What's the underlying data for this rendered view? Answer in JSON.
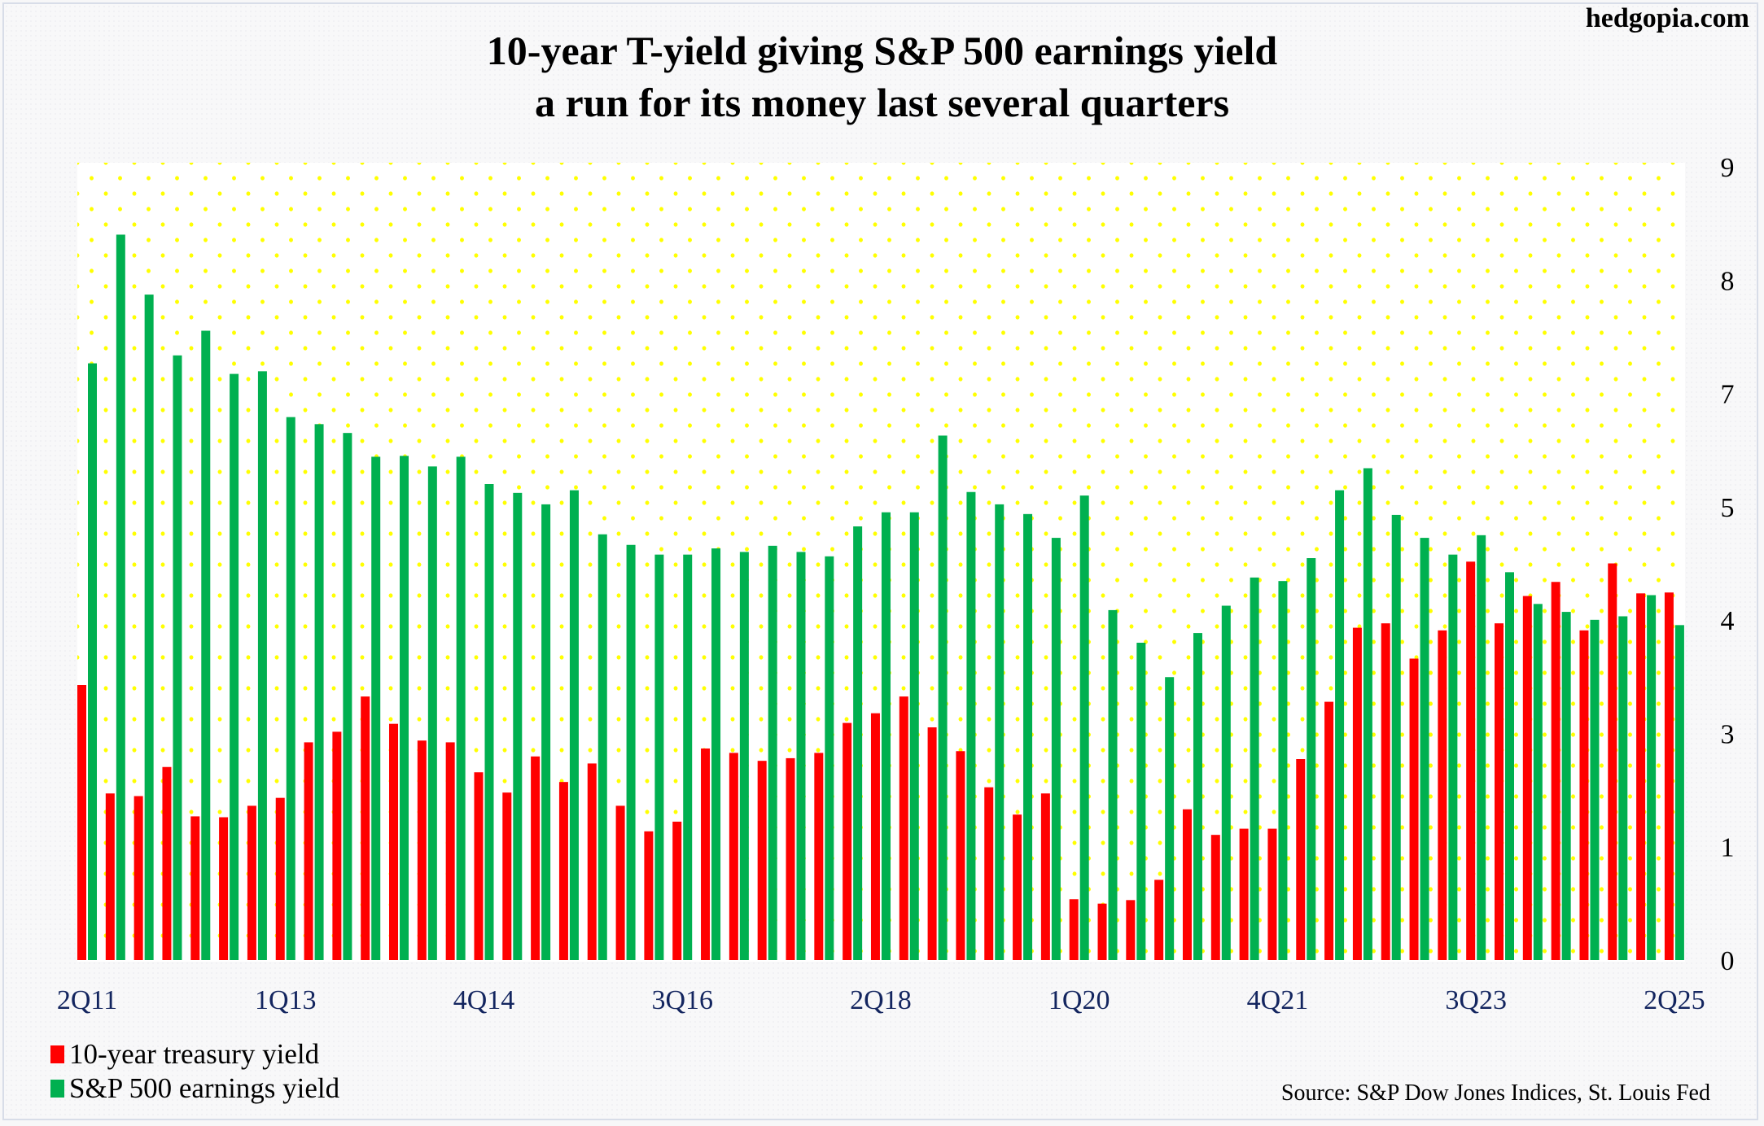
{
  "brand": "hedgopia.com",
  "title_lines": [
    "10-year T-yield giving S&P 500 earnings yield",
    "a run for its money last several quarters"
  ],
  "source": "Source: S&P Dow Jones Indices, St. Louis Fed",
  "legend": [
    {
      "label": "10-year treasury yield",
      "color": "#ff0000"
    },
    {
      "label": "S&P 500 earnings yield",
      "color": "#00b050"
    }
  ],
  "chart_data": {
    "type": "bar",
    "title": "10-year T-yield giving S&P 500 earnings yield a run for its money last several quarters",
    "xlabel": "",
    "ylabel": "",
    "ylim": [
      0,
      9
    ],
    "y_tick_labels": [
      {
        "value": 0,
        "label": "0"
      },
      {
        "value": 1.286,
        "label": "1"
      },
      {
        "value": 2.571,
        "label": "3"
      },
      {
        "value": 3.857,
        "label": "4"
      },
      {
        "value": 5.143,
        "label": "5"
      },
      {
        "value": 6.429,
        "label": "7"
      },
      {
        "value": 7.714,
        "label": "8"
      },
      {
        "value": 9,
        "label": "9"
      }
    ],
    "y_axis_side": "right",
    "x_tick_labels": [
      {
        "index": 0,
        "label": "2Q11"
      },
      {
        "index": 7,
        "label": "1Q13"
      },
      {
        "index": 14,
        "label": "4Q14"
      },
      {
        "index": 21,
        "label": "3Q16"
      },
      {
        "index": 28,
        "label": "2Q18"
      },
      {
        "index": 35,
        "label": "1Q20"
      },
      {
        "index": 42,
        "label": "4Q21"
      },
      {
        "index": 49,
        "label": "3Q23"
      },
      {
        "index": 56,
        "label": "2Q25"
      }
    ],
    "categories": [
      "2Q11",
      "3Q11",
      "4Q11",
      "1Q12",
      "2Q12",
      "3Q12",
      "4Q12",
      "1Q13",
      "2Q13",
      "3Q13",
      "4Q13",
      "1Q14",
      "2Q14",
      "3Q14",
      "4Q14",
      "1Q15",
      "2Q15",
      "3Q15",
      "4Q15",
      "1Q16",
      "2Q16",
      "3Q16",
      "4Q16",
      "1Q17",
      "2Q17",
      "3Q17",
      "4Q17",
      "1Q18",
      "2Q18",
      "3Q18",
      "4Q18",
      "1Q19",
      "2Q19",
      "3Q19",
      "4Q19",
      "1Q20",
      "2Q20",
      "3Q20",
      "4Q20",
      "1Q21",
      "2Q21",
      "3Q21",
      "4Q21",
      "1Q22",
      "2Q22",
      "3Q22",
      "4Q22",
      "1Q23",
      "2Q23",
      "3Q23",
      "4Q23",
      "1Q24",
      "2Q24",
      "3Q24",
      "4Q24",
      "1Q25",
      "2Q25"
    ],
    "grid": "dotted yellow background",
    "legend_position": "bottom-left",
    "series": [
      {
        "name": "10-year treasury yield",
        "color": "#ff0000",
        "values": [
          3.12,
          1.89,
          1.86,
          2.19,
          1.63,
          1.62,
          1.75,
          1.84,
          2.47,
          2.59,
          2.99,
          2.68,
          2.49,
          2.47,
          2.13,
          1.9,
          2.31,
          2.02,
          2.23,
          1.75,
          1.46,
          1.57,
          2.4,
          2.35,
          2.26,
          2.29,
          2.35,
          2.69,
          2.8,
          2.99,
          2.64,
          2.37,
          1.96,
          1.65,
          1.89,
          0.69,
          0.64,
          0.68,
          0.91,
          1.71,
          1.42,
          1.49,
          1.49,
          2.28,
          2.93,
          3.77,
          3.82,
          3.42,
          3.74,
          4.52,
          3.82,
          4.13,
          4.29,
          3.74,
          4.5,
          4.16,
          4.17
        ]
      },
      {
        "name": "S&P 500 earnings yield",
        "color": "#00b050",
        "values": [
          6.77,
          8.23,
          7.55,
          6.86,
          7.14,
          6.65,
          6.68,
          6.16,
          6.08,
          5.98,
          5.71,
          5.72,
          5.6,
          5.71,
          5.4,
          5.3,
          5.17,
          5.33,
          4.83,
          4.71,
          4.6,
          4.6,
          4.67,
          4.63,
          4.7,
          4.63,
          4.58,
          4.92,
          5.08,
          5.08,
          5.95,
          5.31,
          5.17,
          5.06,
          4.79,
          5.27,
          3.97,
          3.6,
          3.21,
          3.71,
          4.02,
          4.34,
          4.3,
          4.56,
          5.33,
          5.58,
          5.05,
          4.79,
          4.6,
          4.82,
          4.4,
          4.04,
          3.95,
          3.86,
          3.9,
          4.14,
          3.8
        ]
      }
    ]
  }
}
